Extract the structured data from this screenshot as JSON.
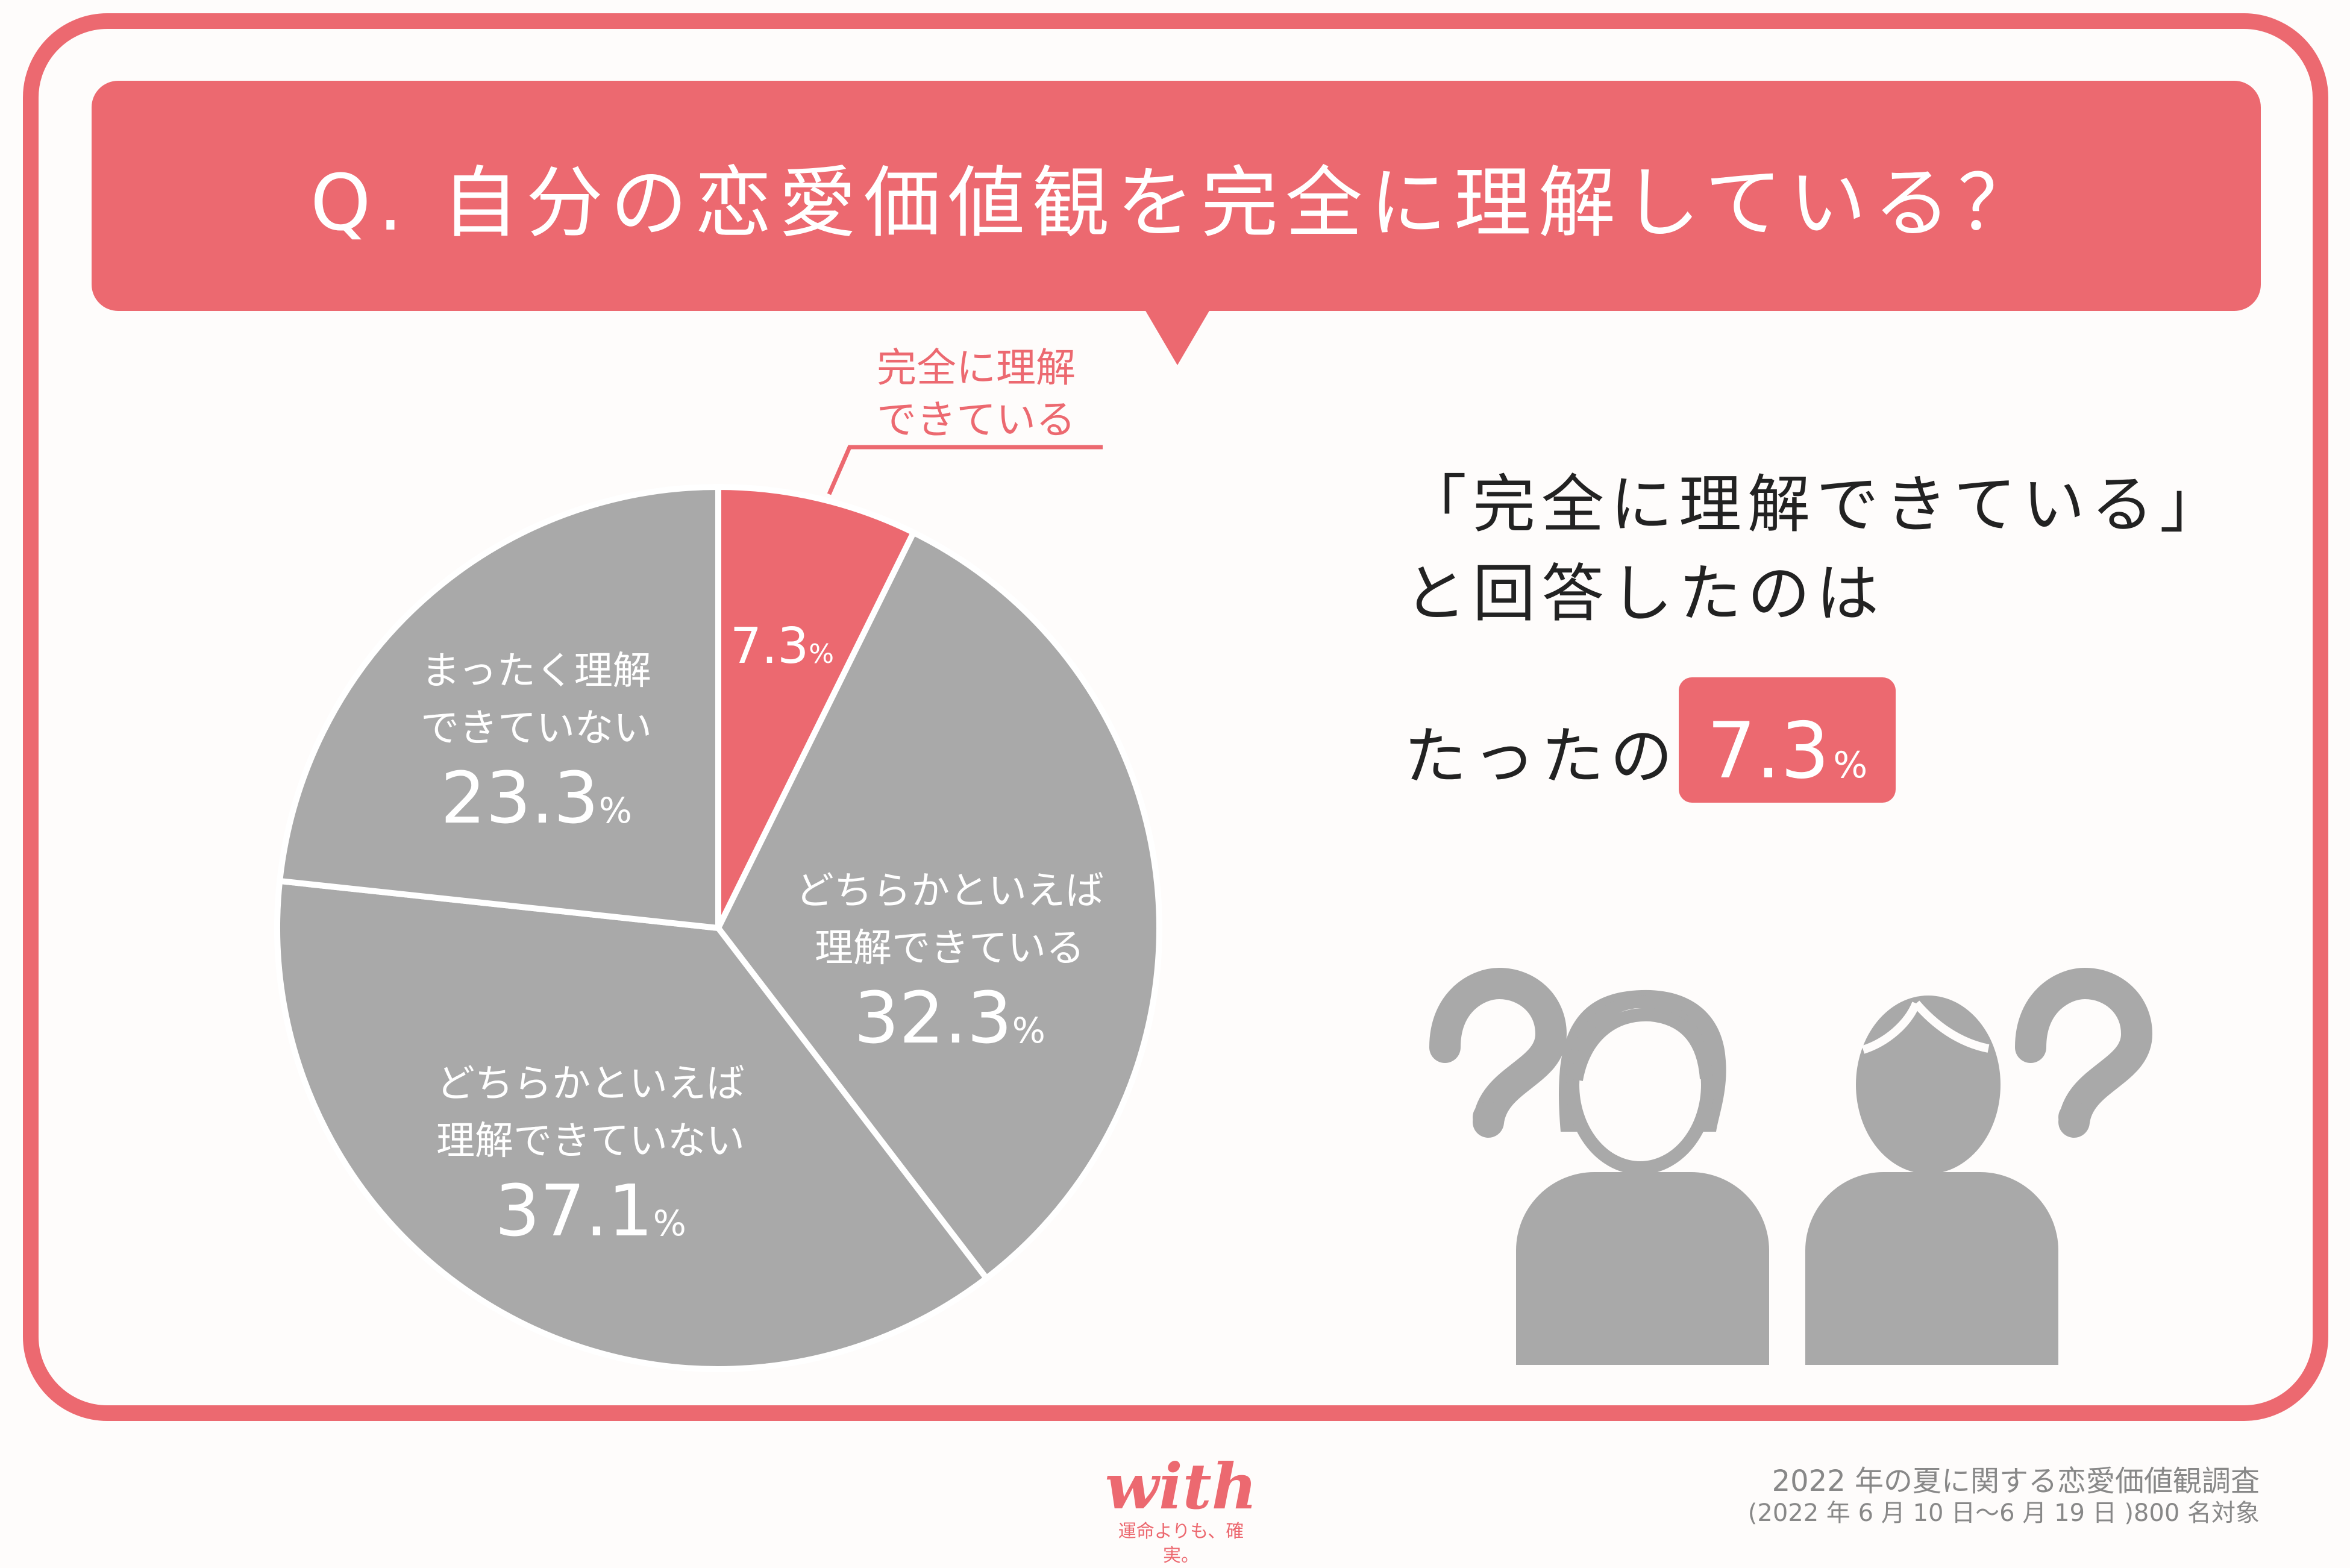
{
  "colors": {
    "accent": "#ec6970",
    "gray": "#a9a9a9",
    "white": "#ffffff",
    "text": "#222222"
  },
  "question": "Q. 自分の恋愛価値観を完全に理解している？",
  "callout": {
    "line1": "完全に理解",
    "line2": "できている"
  },
  "chart_data": {
    "type": "pie",
    "unit": "%",
    "slices": [
      {
        "label_lines": [
          "完全に理解",
          "できている"
        ],
        "value": 7.3,
        "value_text": "7.3",
        "color": "#ec6970"
      },
      {
        "label_lines": [
          "どちらかといえば",
          "理解できている"
        ],
        "value": 32.3,
        "value_text": "32.3",
        "color": "#a9a9a9"
      },
      {
        "label_lines": [
          "どちらかといえば",
          "理解できていない"
        ],
        "value": 37.1,
        "value_text": "37.1",
        "color": "#a9a9a9"
      },
      {
        "label_lines": [
          "まったく理解",
          "できていない"
        ],
        "value": 23.3,
        "value_text": "23.3",
        "color": "#a9a9a9"
      }
    ]
  },
  "side": {
    "line1": "「完全に理解できている」",
    "line2": "と回答したのは",
    "line3": "たったの",
    "badge_value": "7.3",
    "badge_unit": "%"
  },
  "icons": [
    "question-mark-icon",
    "woman-icon",
    "man-icon",
    "question-mark-icon"
  ],
  "survey": {
    "title": "2022 年の夏に関する恋愛価値観調査",
    "period": "(2022 年 6 月 10 日〜6 月 19 日 )800 名対象"
  },
  "logo": {
    "word": "with",
    "tagline": "運命よりも、確実。"
  }
}
